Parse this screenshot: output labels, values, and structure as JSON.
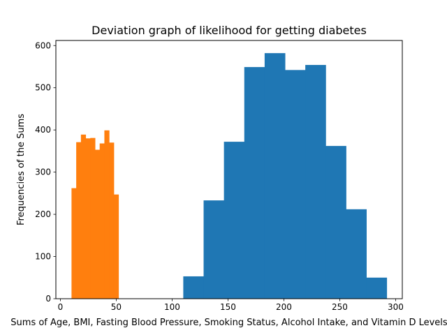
{
  "chart_data": {
    "type": "histogram",
    "title": "Deviation graph of likelihood for getting diabetes",
    "xlabel": "Sums of Age, BMI, Fasting Blood Pressure, Smoking Status, Alcohol Intake, and Vitamin D Levels",
    "ylabel": "Frequencies of the Sums",
    "xlim": [
      -4,
      306
    ],
    "ylim": [
      0,
      612
    ],
    "xticks": [
      0,
      50,
      100,
      150,
      200,
      250,
      300
    ],
    "yticks": [
      0,
      100,
      200,
      300,
      400,
      500,
      600
    ],
    "series": [
      {
        "color": "#1f77b4",
        "bins": [
          {
            "x0": 110,
            "x1": 128.2,
            "value": 53
          },
          {
            "x0": 128.2,
            "x1": 146.4,
            "value": 233
          },
          {
            "x0": 146.4,
            "x1": 164.6,
            "value": 372
          },
          {
            "x0": 164.6,
            "x1": 182.8,
            "value": 549
          },
          {
            "x0": 182.8,
            "x1": 201,
            "value": 582
          },
          {
            "x0": 201,
            "x1": 219.2,
            "value": 542
          },
          {
            "x0": 219.2,
            "x1": 237.4,
            "value": 554
          },
          {
            "x0": 237.4,
            "x1": 255.6,
            "value": 362
          },
          {
            "x0": 255.6,
            "x1": 273.8,
            "value": 212
          },
          {
            "x0": 273.8,
            "x1": 292,
            "value": 50
          }
        ]
      },
      {
        "color": "#ff7f0e",
        "bins": [
          {
            "x0": 10,
            "x1": 14.2,
            "value": 262
          },
          {
            "x0": 14.2,
            "x1": 18.4,
            "value": 371
          },
          {
            "x0": 18.4,
            "x1": 22.6,
            "value": 389
          },
          {
            "x0": 22.6,
            "x1": 26.8,
            "value": 380
          },
          {
            "x0": 26.8,
            "x1": 31,
            "value": 381
          },
          {
            "x0": 31,
            "x1": 35.2,
            "value": 353
          },
          {
            "x0": 35.2,
            "x1": 39.4,
            "value": 368
          },
          {
            "x0": 39.4,
            "x1": 43.6,
            "value": 399
          },
          {
            "x0": 43.6,
            "x1": 47.8,
            "value": 370
          },
          {
            "x0": 47.8,
            "x1": 52,
            "value": 247
          }
        ]
      }
    ]
  }
}
